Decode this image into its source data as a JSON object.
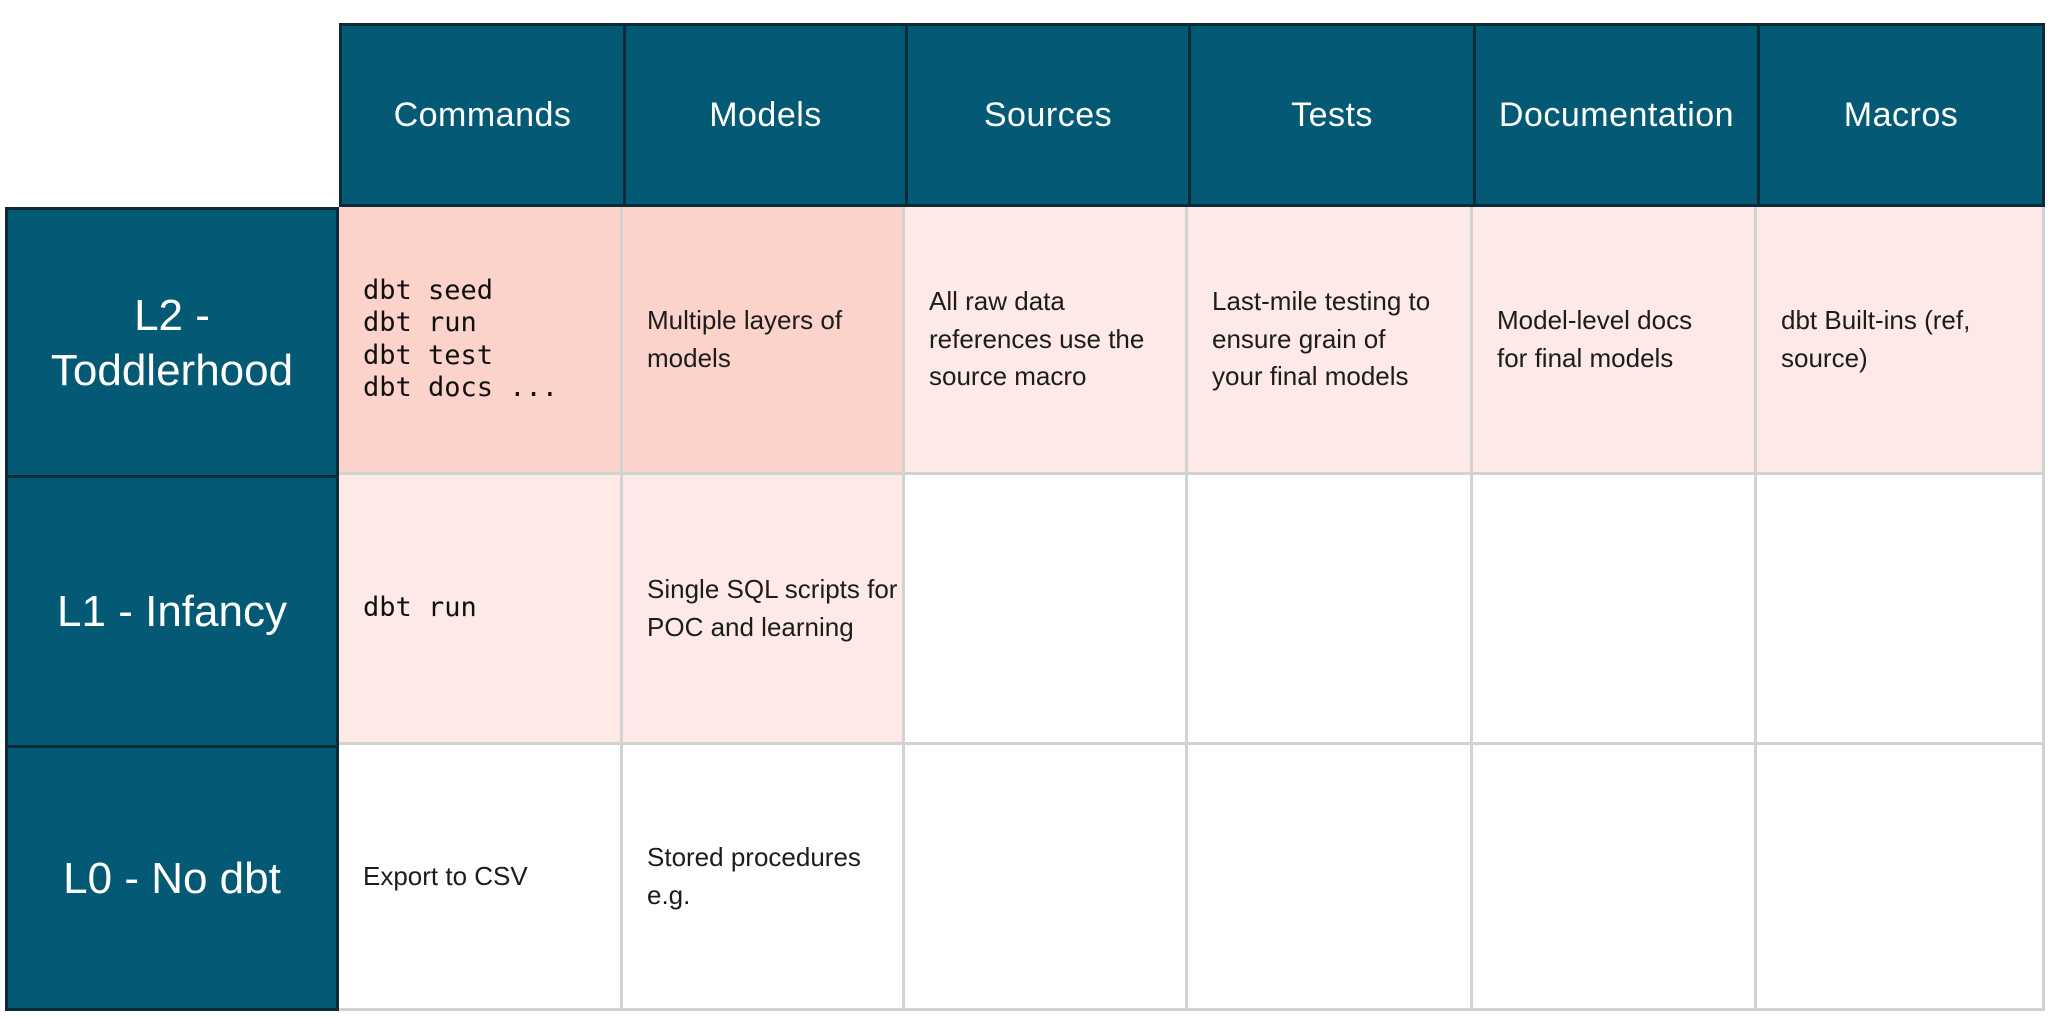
{
  "colors": {
    "teal": "#045A74",
    "border-dark": "#0B2B38",
    "pink-strong": "#FBD3CA",
    "pink-soft": "#FDEAE6",
    "grid": "#D2D2D2",
    "text": "#1C1C1C",
    "mono-text": "#101010"
  },
  "grid": {
    "columns": [
      "Commands",
      "Models",
      "Sources",
      "Tests",
      "Documentation",
      "Macros"
    ],
    "rows": [
      {
        "label": "L2 -\nToddlerhood",
        "cells": [
          "dbt seed\ndbt run\ndbt test\ndbt docs ...",
          "Multiple layers of\nmodels",
          "All raw data\nreferences use the\nsource macro",
          "Last-mile testing to\nensure grain of\nyour final models",
          "Model-level docs\nfor final models",
          "dbt Built-ins (ref,\nsource)"
        ]
      },
      {
        "label": "L1 - Infancy",
        "cells": [
          "dbt run",
          "Single SQL scripts for\nPOC and learning",
          "",
          "",
          "",
          ""
        ]
      },
      {
        "label": "L0 - No dbt",
        "cells": [
          "Export to CSV",
          "Stored procedures\ne.g.",
          "",
          "",
          "",
          ""
        ]
      }
    ]
  }
}
